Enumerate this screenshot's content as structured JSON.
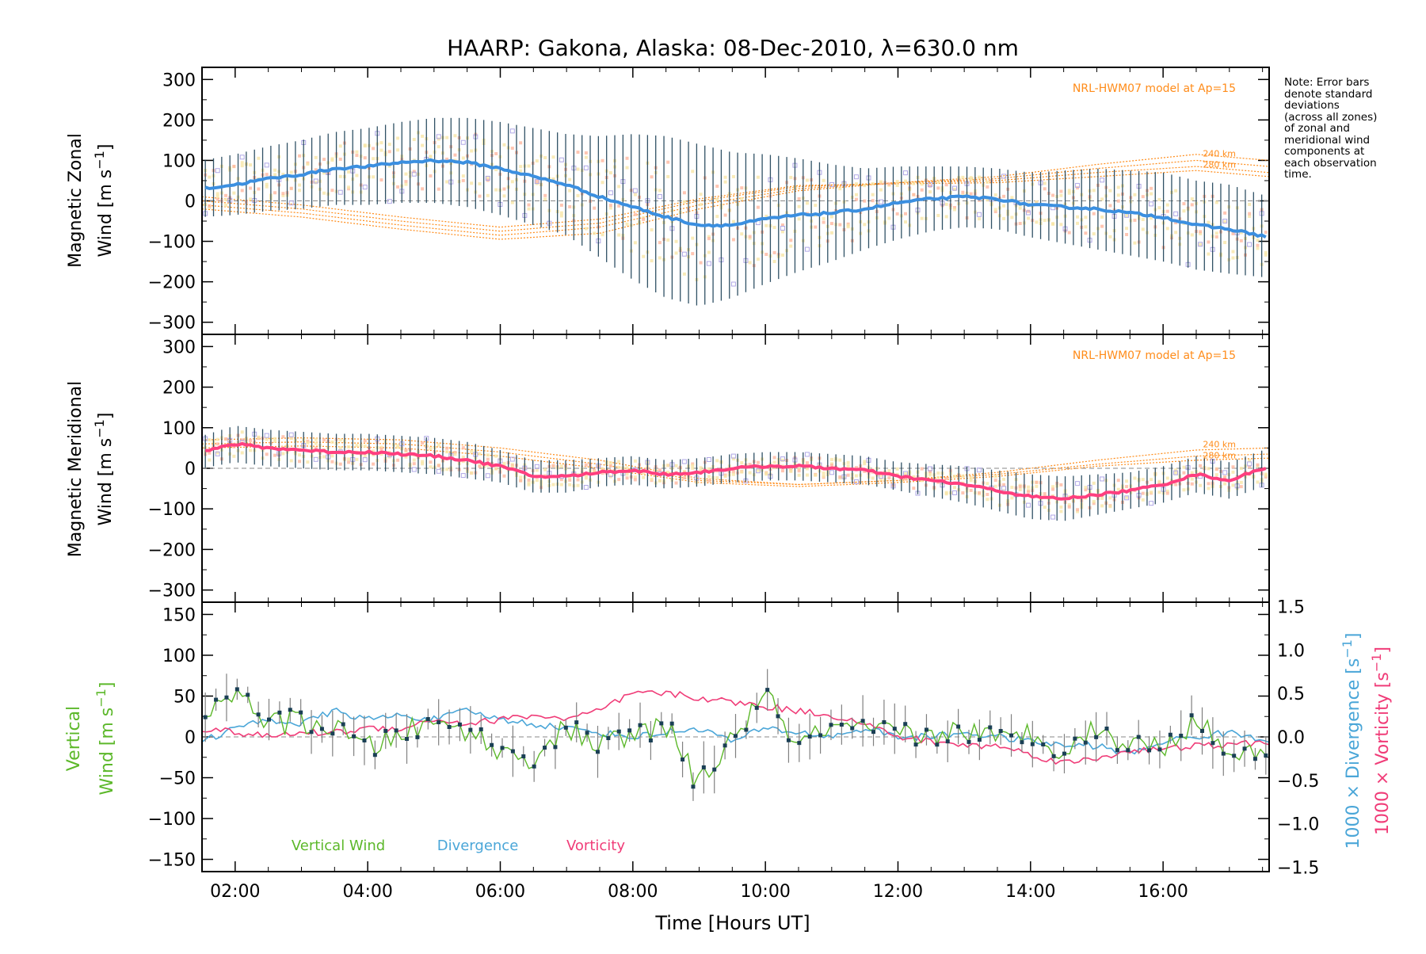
{
  "title": "HAARP: Gakona,  Alaska: 08-Dec-2010, λ=630.0 nm",
  "note": "Note: Error bars\ndenote standard\ndeviations\n(across all zones)\nof zonal and\nmeridional wind\ncomponents at\neach observation\ntime.",
  "model_label": "NRL-HWM07 model at Ap=15",
  "altitude_labels": [
    "240 km",
    "280 km"
  ],
  "xlabel": "Time [Hours UT]",
  "colors": {
    "zonal": "#3b8fe0",
    "meridional": "#ff3f7f",
    "vertical": "#5cb82a",
    "divergence": "#4aa6d8",
    "vorticity": "#f03c78",
    "model": "#ff8c1a",
    "errorbar": "#1a3f55",
    "scatter": "#b0a8e6",
    "zone_pale": "#ffb8a0"
  },
  "chart_data": [
    {
      "type": "line",
      "title": "HAARP: Gakona,  Alaska: 08-Dec-2010, λ=630.0 nm",
      "ylabel": "Magnetic Zonal Wind [m s⁻¹]",
      "ylim": [
        -330,
        330
      ],
      "yticks": [
        "300",
        "200",
        "100",
        "0",
        "−100",
        "−200",
        "−300"
      ],
      "xlim": [
        1.5,
        17.6
      ],
      "xticks": [
        "02:00",
        "04:00",
        "06:00",
        "08:00",
        "10:00",
        "12:00",
        "14:00",
        "16:00"
      ],
      "annotation": "NRL-HWM07 model at Ap=15",
      "series_x": [
        1.5,
        2.0,
        2.5,
        3.0,
        3.5,
        4.0,
        4.5,
        5.0,
        5.5,
        6.0,
        6.5,
        7.0,
        7.5,
        8.0,
        8.5,
        9.0,
        9.5,
        10.0,
        10.5,
        11.0,
        11.5,
        12.0,
        12.5,
        13.0,
        13.5,
        14.0,
        14.5,
        15.0,
        15.5,
        16.0,
        16.5,
        17.0,
        17.6
      ],
      "series": [
        {
          "values": [
            30,
            40,
            55,
            65,
            80,
            85,
            95,
            100,
            95,
            80,
            60,
            40,
            10,
            -15,
            -40,
            -60,
            -60,
            -45,
            -35,
            -30,
            -20,
            -5,
            5,
            10,
            5,
            -10,
            -15,
            -20,
            -30,
            -40,
            -60,
            -70,
            -90
          ]
        }
      ],
      "std": [
        70,
        75,
        80,
        85,
        90,
        95,
        100,
        105,
        110,
        115,
        120,
        125,
        150,
        180,
        200,
        200,
        180,
        160,
        140,
        120,
        100,
        90,
        80,
        75,
        75,
        80,
        90,
        100,
        105,
        110,
        110,
        110,
        100
      ],
      "model_x": [
        1.5,
        3,
        4.5,
        6,
        7.5,
        9,
        10.5,
        12,
        13.5,
        15,
        16.5,
        17.6
      ],
      "model_series": [
        {
          "values": [
            -20,
            -40,
            -70,
            -95,
            -80,
            -20,
            25,
            45,
            60,
            90,
            115,
            100
          ]
        },
        {
          "values": [
            -10,
            -30,
            -60,
            -85,
            -65,
            -10,
            30,
            45,
            55,
            80,
            100,
            85
          ]
        },
        {
          "values": [
            0,
            -20,
            -50,
            -75,
            -55,
            0,
            35,
            45,
            50,
            70,
            85,
            70
          ]
        },
        {
          "values": [
            10,
            -10,
            -40,
            -65,
            -45,
            5,
            38,
            42,
            45,
            60,
            75,
            60
          ]
        }
      ]
    },
    {
      "type": "line",
      "ylabel": "Magnetic Meridional Wind [m s⁻¹]",
      "ylim": [
        -330,
        330
      ],
      "yticks": [
        "300",
        "200",
        "100",
        "0",
        "−100",
        "−200",
        "−300"
      ],
      "xlim": [
        1.5,
        17.6
      ],
      "xticks": [
        "02:00",
        "04:00",
        "06:00",
        "08:00",
        "10:00",
        "12:00",
        "14:00",
        "16:00"
      ],
      "annotation": "NRL-HWM07 model at Ap=15",
      "series_x": [
        1.5,
        2.0,
        2.5,
        3.0,
        3.5,
        4.0,
        4.5,
        5.0,
        5.5,
        6.0,
        6.5,
        7.0,
        7.5,
        8.0,
        8.5,
        9.0,
        9.5,
        10.0,
        10.5,
        11.0,
        11.5,
        12.0,
        12.5,
        13.0,
        13.5,
        14.0,
        14.5,
        15.0,
        15.5,
        16.0,
        16.5,
        17.0,
        17.6
      ],
      "series": [
        {
          "values": [
            40,
            60,
            50,
            45,
            40,
            40,
            35,
            30,
            20,
            5,
            -20,
            -20,
            -10,
            -5,
            -15,
            -10,
            0,
            5,
            5,
            0,
            -5,
            -20,
            -30,
            -40,
            -55,
            -70,
            -75,
            -65,
            -55,
            -40,
            -15,
            -30,
            5
          ]
        }
      ],
      "std": [
        40,
        45,
        45,
        45,
        45,
        45,
        45,
        45,
        45,
        40,
        40,
        40,
        35,
        35,
        35,
        35,
        35,
        35,
        35,
        35,
        35,
        35,
        40,
        45,
        50,
        55,
        55,
        50,
        45,
        45,
        45,
        45,
        45
      ],
      "model_x": [
        1.5,
        3,
        4.5,
        6,
        7.5,
        9,
        10.5,
        12,
        13.5,
        15,
        16.5,
        17.6
      ],
      "model_series": [
        {
          "values": [
            70,
            75,
            70,
            50,
            20,
            -25,
            -40,
            -30,
            -10,
            20,
            45,
            50
          ]
        },
        {
          "values": [
            60,
            65,
            60,
            40,
            10,
            -30,
            -40,
            -30,
            -15,
            10,
            30,
            35
          ]
        },
        {
          "values": [
            50,
            55,
            50,
            30,
            0,
            -35,
            -45,
            -35,
            -20,
            5,
            20,
            25
          ]
        }
      ]
    },
    {
      "type": "line",
      "ylabel": "Vertical Wind [m s⁻¹]",
      "ylabel_right": "1000 × Divergence [s⁻¹]",
      "ylabel_right2": "1000 × Vorticity [s⁻¹]",
      "ylim": [
        -165,
        165
      ],
      "y2lim": [
        -1.55,
        1.55
      ],
      "yticks": [
        "150",
        "100",
        "50",
        "0",
        "−50",
        "−100",
        "−150"
      ],
      "y2ticks": [
        "1.5",
        "1.0",
        "0.5",
        "0.0",
        "−0.5",
        "−1.0",
        "−1.5"
      ],
      "xlim": [
        1.5,
        17.6
      ],
      "xticks": [
        "02:00",
        "04:00",
        "06:00",
        "08:00",
        "10:00",
        "12:00",
        "14:00",
        "16:00"
      ],
      "legend": [
        "Vertical Wind",
        "Divergence",
        "Vorticity"
      ],
      "series_x": [
        1.5,
        2.0,
        2.5,
        3.0,
        3.5,
        4.0,
        4.5,
        5.0,
        5.5,
        6.0,
        6.5,
        7.0,
        7.5,
        8.0,
        8.5,
        9.0,
        9.5,
        10.0,
        10.5,
        11.0,
        11.5,
        12.0,
        12.5,
        13.0,
        13.5,
        14.0,
        14.5,
        15.0,
        15.5,
        16.0,
        16.5,
        17.0,
        17.6
      ],
      "series": [
        {
          "name": "Vertical Wind",
          "values": [
            10,
            60,
            15,
            20,
            10,
            -15,
            5,
            15,
            10,
            -20,
            -25,
            10,
            -10,
            0,
            15,
            -60,
            0,
            50,
            -10,
            10,
            5,
            5,
            0,
            10,
            -5,
            5,
            -15,
            10,
            -10,
            -10,
            20,
            -20,
            -10
          ]
        },
        {
          "name": "Divergence",
          "values": [
            -0.05,
            0.1,
            0.2,
            0.15,
            0.3,
            0.2,
            0.25,
            0.2,
            0.3,
            0.2,
            0.15,
            0.1,
            0.05,
            0.0,
            0.05,
            0.1,
            -0.05,
            0.1,
            0.05,
            0.0,
            0.1,
            0.0,
            0.0,
            0.05,
            0.0,
            -0.05,
            -0.1,
            -0.1,
            -0.2,
            -0.05,
            0.0,
            0.05,
            -0.05
          ]
        },
        {
          "name": "Vorticity",
          "values": [
            0.1,
            0.05,
            0.0,
            0.05,
            0.05,
            0.1,
            0.1,
            0.2,
            0.15,
            0.2,
            0.25,
            0.2,
            0.3,
            0.5,
            0.5,
            0.45,
            0.4,
            0.35,
            0.3,
            0.25,
            0.15,
            0.0,
            -0.05,
            -0.1,
            -0.1,
            -0.2,
            -0.3,
            -0.25,
            -0.15,
            -0.15,
            -0.1,
            -0.1,
            -0.05
          ]
        }
      ]
    }
  ]
}
